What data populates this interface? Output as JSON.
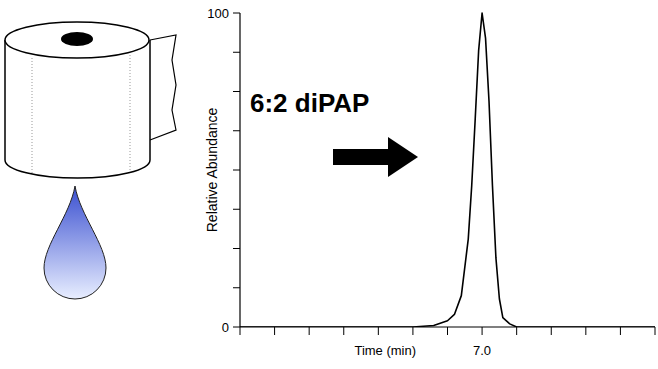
{
  "chart_data": {
    "type": "line",
    "ylabel": "Relative Abundance",
    "xlabel": "Time (min)",
    "annotations": [
      "6:2 diPAP"
    ],
    "x": [
      3.5,
      6.0,
      6.3,
      6.5,
      6.6,
      6.7,
      6.8,
      6.85,
      6.9,
      6.95,
      7.0,
      7.05,
      7.1,
      7.15,
      7.2,
      7.25,
      7.3,
      7.4,
      7.5,
      9.5
    ],
    "values": [
      0,
      0,
      0.5,
      2,
      4,
      10,
      28,
      45,
      66,
      88,
      100,
      92,
      72,
      45,
      22,
      9,
      3,
      1,
      0,
      0
    ],
    "color": "#000000",
    "xlim": [
      3.5,
      9.5
    ],
    "xticks": [
      {
        "value": 3.5,
        "label": null
      },
      {
        "value": 4.0,
        "label": null
      },
      {
        "value": 4.5,
        "label": null
      },
      {
        "value": 5.0,
        "label": null
      },
      {
        "value": 5.5,
        "label": null
      },
      {
        "value": 6.0,
        "label": null
      },
      {
        "value": 6.5,
        "label": null
      },
      {
        "value": 7.0,
        "label": "7.0"
      },
      {
        "value": 7.5,
        "label": null
      },
      {
        "value": 8.0,
        "label": null
      },
      {
        "value": 8.5,
        "label": null
      },
      {
        "value": 9.0,
        "label": null
      },
      {
        "value": 9.5,
        "label": null
      }
    ],
    "ylim": [
      0,
      100
    ],
    "yticks": [
      0,
      {
        "value": 12.5,
        "label": null
      },
      {
        "value": 25,
        "label": null
      },
      {
        "value": 37.5,
        "label": null
      },
      {
        "value": 50,
        "label": null
      },
      {
        "value": 62.5,
        "label": null
      },
      {
        "value": 75,
        "label": null
      },
      {
        "value": 87.5,
        "label": null
      },
      100
    ],
    "grid": false
  }
}
